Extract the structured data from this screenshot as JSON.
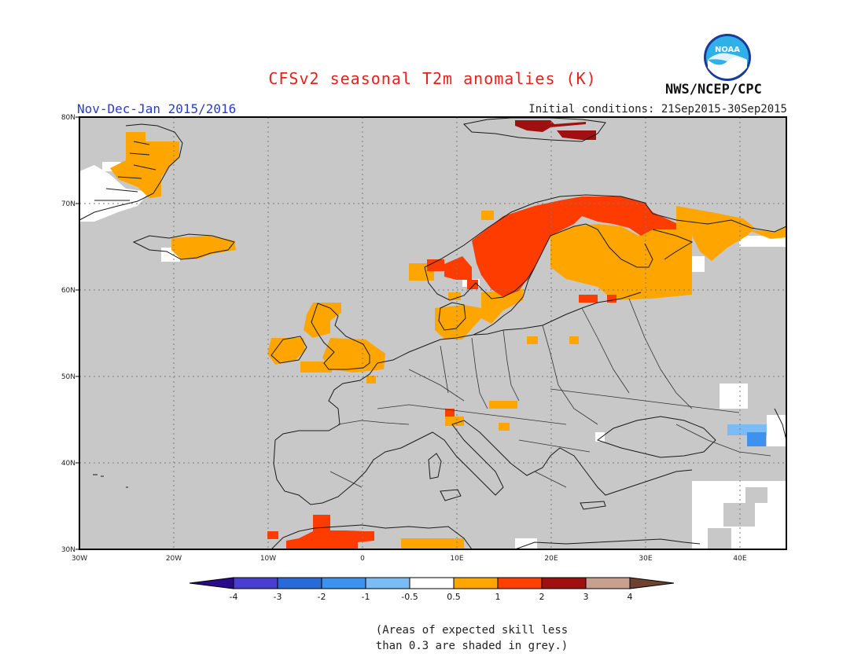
{
  "header": {
    "title": "CFSv2 seasonal T2m anomalies (K)",
    "period": "Nov-Dec-Jan 2015/2016",
    "initial_conditions": "Initial conditions: 21Sep2015-30Sep2015",
    "agency": "NWS/NCEP/CPC",
    "logo_text": "NOAA"
  },
  "map": {
    "region": "Europe",
    "lon_range": [
      -30,
      45
    ],
    "lat_range": [
      30,
      80
    ],
    "grid": true,
    "background_color": "#c8c8c8",
    "lat_labels": [
      "80N",
      "70N",
      "60N",
      "50N",
      "40N",
      "30N"
    ],
    "lon_labels": [
      "30W",
      "20W",
      "10W",
      "0",
      "10E",
      "20E",
      "30E",
      "40E"
    ]
  },
  "colorbar": {
    "tick_labels": [
      "-4",
      "-3",
      "-2",
      "-1",
      "-0.5",
      "0.5",
      "1",
      "2",
      "3",
      "4"
    ],
    "colors": [
      "#2a0a8c",
      "#4a3ed0",
      "#2a6ad8",
      "#3c92ee",
      "#7cbcf4",
      "#ffffff",
      "#ffa500",
      "#ff4000",
      "#a01010",
      "#c8a090",
      "#704030"
    ],
    "note_line1": "(Areas of expected skill less",
    "note_line2": "than 0.3 are shaded in grey.)"
  },
  "anomaly_regions": [
    {
      "name": "Scandinavia",
      "level": "1 to 2 K"
    },
    {
      "name": "Finland / NW Russia",
      "level": "0.5 to 1 K"
    },
    {
      "name": "Greenland east coast",
      "level": "0.5 to 1 K"
    },
    {
      "name": "Iceland",
      "level": "0.5 to 1 K"
    },
    {
      "name": "British Isles",
      "level": "0.5 to 1 K"
    },
    {
      "name": "Svalbard",
      "level": "2 to 3 K"
    },
    {
      "name": "North Africa",
      "level": "1 to 2 K"
    },
    {
      "name": "Caucasus",
      "level": "-1 to -0.5 K"
    }
  ]
}
